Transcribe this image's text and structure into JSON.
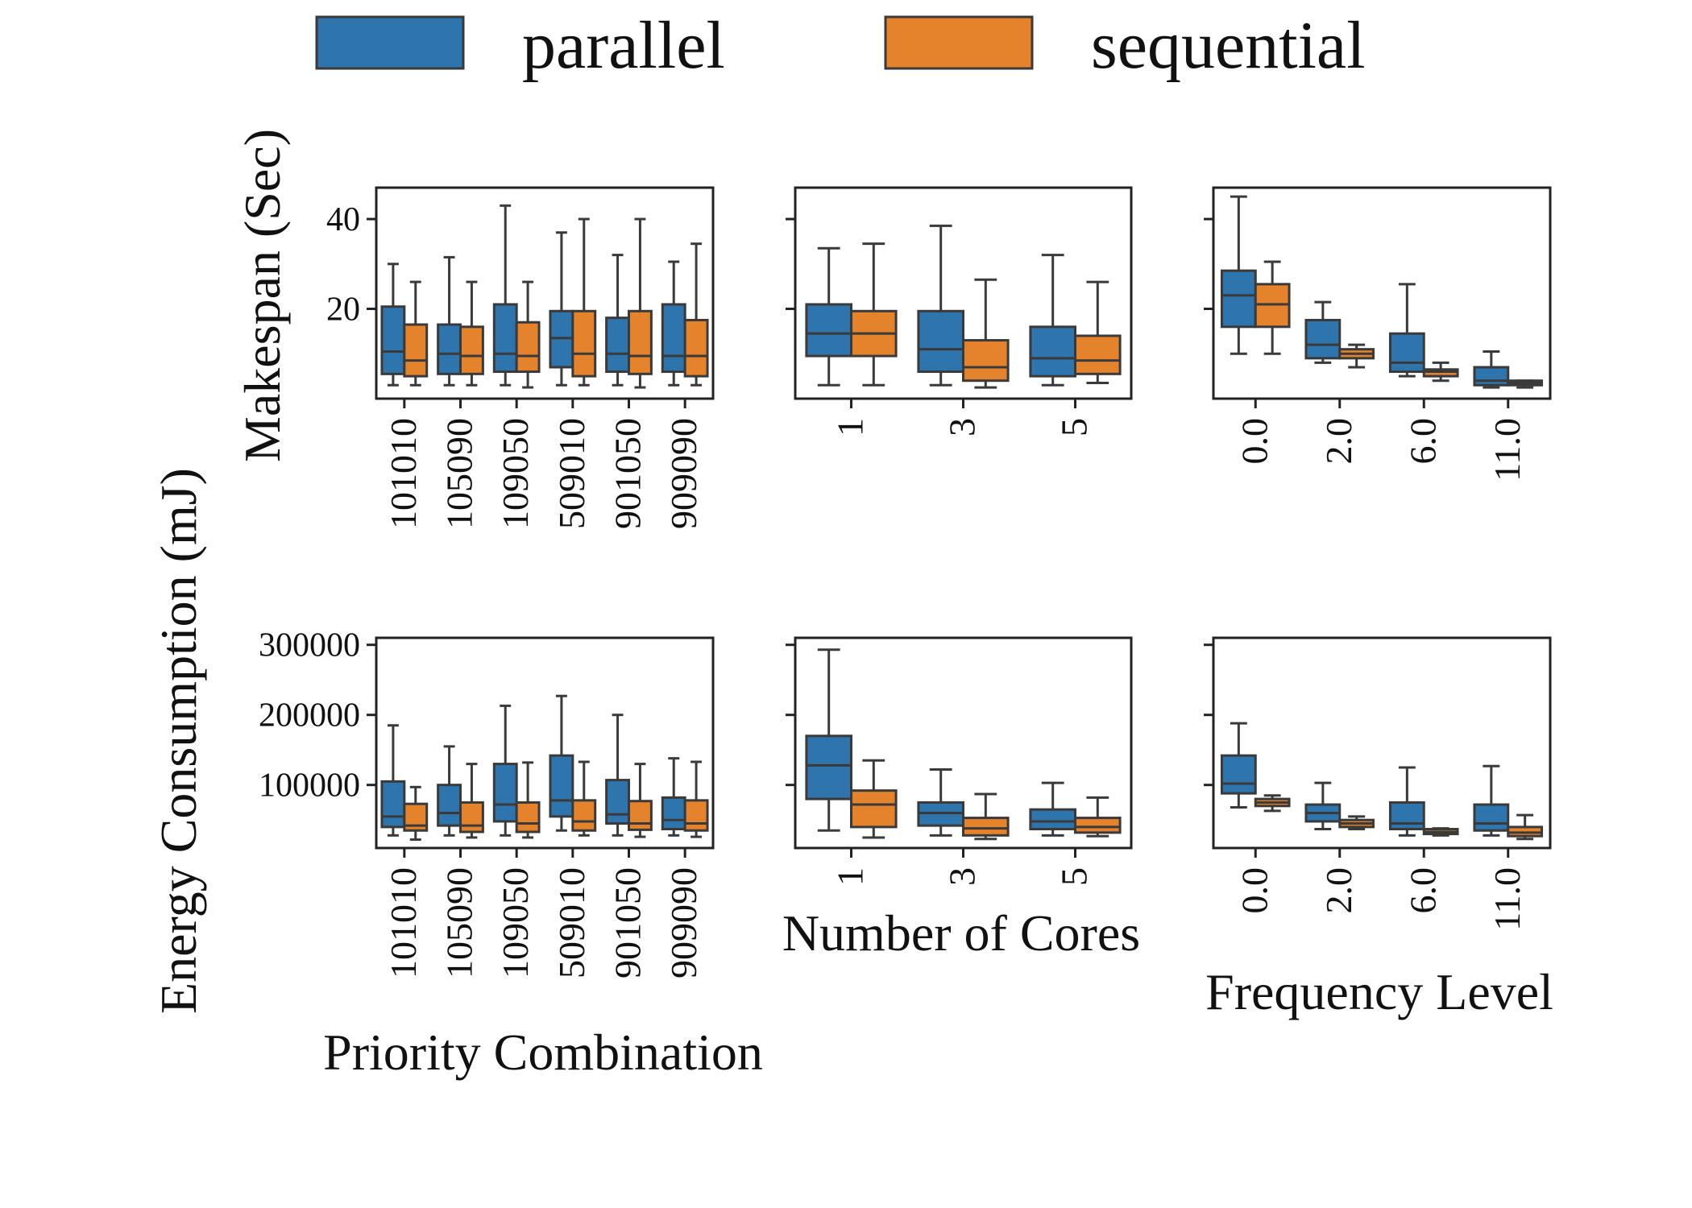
{
  "colors": {
    "parallel": "#2e75ad",
    "sequential": "#e5832d",
    "line": "#3a3a3a"
  },
  "legend": {
    "items": [
      {
        "key": "parallel",
        "label": "parallel"
      },
      {
        "key": "sequential",
        "label": "sequential"
      }
    ]
  },
  "labels": {
    "makespan_y": "Makespan (Sec)",
    "energy_y": "Energy Consumption (mJ)",
    "priority_x": "Priority Combination",
    "cores_x": "Number of Cores",
    "freq_x": "Frequency Level"
  },
  "chart_data": [
    {
      "type": "boxplot",
      "id": "makespan-priority",
      "ylabel": "Makespan (Sec)",
      "ylim": [
        0,
        47
      ],
      "yticks": [
        20,
        40
      ],
      "ytick_labels": [
        "20",
        "40"
      ],
      "categories": [
        "101010",
        "105090",
        "109050",
        "509010",
        "901050",
        "909090"
      ],
      "series": [
        {
          "name": "parallel",
          "boxes": [
            {
              "whislo": 3,
              "q1": 5.5,
              "med": 10.5,
              "q3": 20.5,
              "whishi": 30
            },
            {
              "whislo": 3,
              "q1": 5.5,
              "med": 10,
              "q3": 16.5,
              "whishi": 31.5
            },
            {
              "whislo": 3,
              "q1": 6,
              "med": 10,
              "q3": 21,
              "whishi": 43
            },
            {
              "whislo": 3,
              "q1": 7,
              "med": 13.5,
              "q3": 19.5,
              "whishi": 37
            },
            {
              "whislo": 3,
              "q1": 6,
              "med": 10,
              "q3": 18,
              "whishi": 32
            },
            {
              "whislo": 3,
              "q1": 6,
              "med": 9.5,
              "q3": 21,
              "whishi": 30.5
            }
          ]
        },
        {
          "name": "sequential",
          "boxes": [
            {
              "whislo": 3,
              "q1": 5,
              "med": 8.5,
              "q3": 16.5,
              "whishi": 26
            },
            {
              "whislo": 3,
              "q1": 5.5,
              "med": 9.5,
              "q3": 16,
              "whishi": 26
            },
            {
              "whislo": 2.5,
              "q1": 6,
              "med": 9.5,
              "q3": 17,
              "whishi": 26
            },
            {
              "whislo": 3,
              "q1": 5,
              "med": 10,
              "q3": 19.5,
              "whishi": 40
            },
            {
              "whislo": 2.5,
              "q1": 5.5,
              "med": 9.5,
              "q3": 19.5,
              "whishi": 40
            },
            {
              "whislo": 3,
              "q1": 5,
              "med": 9.5,
              "q3": 17.5,
              "whishi": 34.5
            }
          ]
        }
      ]
    },
    {
      "type": "boxplot",
      "id": "makespan-cores",
      "ylabel": "",
      "ylim": [
        0,
        47
      ],
      "yticks": [
        20,
        40
      ],
      "categories": [
        "1",
        "3",
        "5"
      ],
      "series": [
        {
          "name": "parallel",
          "boxes": [
            {
              "whislo": 3,
              "q1": 9.5,
              "med": 14.5,
              "q3": 21,
              "whishi": 33.5
            },
            {
              "whislo": 3,
              "q1": 6,
              "med": 11,
              "q3": 19.5,
              "whishi": 38.5
            },
            {
              "whislo": 3,
              "q1": 5,
              "med": 9,
              "q3": 16,
              "whishi": 32
            }
          ]
        },
        {
          "name": "sequential",
          "boxes": [
            {
              "whislo": 3,
              "q1": 9.5,
              "med": 14.5,
              "q3": 19.5,
              "whishi": 34.5
            },
            {
              "whislo": 2.5,
              "q1": 4,
              "med": 7,
              "q3": 13,
              "whishi": 26.5
            },
            {
              "whislo": 3.5,
              "q1": 5.5,
              "med": 8.5,
              "q3": 14,
              "whishi": 26
            }
          ]
        }
      ]
    },
    {
      "type": "boxplot",
      "id": "makespan-frequency",
      "ylabel": "",
      "ylim": [
        0,
        47
      ],
      "yticks": [
        20,
        40
      ],
      "categories": [
        "0.0",
        "2.0",
        "6.0",
        "11.0"
      ],
      "series": [
        {
          "name": "parallel",
          "boxes": [
            {
              "whislo": 10,
              "q1": 16,
              "med": 23,
              "q3": 28.5,
              "whishi": 45
            },
            {
              "whislo": 8,
              "q1": 9,
              "med": 12,
              "q3": 17.5,
              "whishi": 21.5
            },
            {
              "whislo": 5,
              "q1": 6,
              "med": 8,
              "q3": 14.5,
              "whishi": 25.5
            },
            {
              "whislo": 2.5,
              "q1": 3,
              "med": 4,
              "q3": 7,
              "whishi": 10.5
            }
          ]
        },
        {
          "name": "sequential",
          "boxes": [
            {
              "whislo": 10,
              "q1": 16,
              "med": 21,
              "q3": 25.5,
              "whishi": 30.5
            },
            {
              "whislo": 7,
              "q1": 9,
              "med": 10,
              "q3": 11,
              "whishi": 12
            },
            {
              "whislo": 4,
              "q1": 5,
              "med": 6,
              "q3": 6.5,
              "whishi": 8
            },
            {
              "whislo": 2.5,
              "q1": 3,
              "med": 3.5,
              "q3": 4,
              "whishi": 4
            }
          ]
        }
      ]
    },
    {
      "type": "boxplot",
      "id": "energy-priority",
      "ylabel": "Energy Consumption (mJ)",
      "ylim": [
        10000,
        310000
      ],
      "yticks": [
        100000,
        200000,
        300000
      ],
      "ytick_labels": [
        "100000",
        "200000",
        "300000"
      ],
      "categories": [
        "101010",
        "105090",
        "109050",
        "509010",
        "901050",
        "909090"
      ],
      "series": [
        {
          "name": "parallel",
          "boxes": [
            {
              "whislo": 28000,
              "q1": 40000,
              "med": 55000,
              "q3": 105000,
              "whishi": 185000
            },
            {
              "whislo": 28000,
              "q1": 42000,
              "med": 60000,
              "q3": 100000,
              "whishi": 155000
            },
            {
              "whislo": 28000,
              "q1": 48000,
              "med": 72000,
              "q3": 130000,
              "whishi": 213000
            },
            {
              "whislo": 35000,
              "q1": 55000,
              "med": 78000,
              "q3": 142000,
              "whishi": 227000
            },
            {
              "whislo": 28000,
              "q1": 45000,
              "med": 58000,
              "q3": 107000,
              "whishi": 200000
            },
            {
              "whislo": 28000,
              "q1": 37000,
              "med": 50000,
              "q3": 82000,
              "whishi": 138000
            }
          ]
        },
        {
          "name": "sequential",
          "boxes": [
            {
              "whislo": 22000,
              "q1": 35000,
              "med": 42000,
              "q3": 73000,
              "whishi": 97000
            },
            {
              "whislo": 25000,
              "q1": 33000,
              "med": 42000,
              "q3": 75000,
              "whishi": 130000
            },
            {
              "whislo": 25000,
              "q1": 33000,
              "med": 45000,
              "q3": 75000,
              "whishi": 132000
            },
            {
              "whislo": 28000,
              "q1": 35000,
              "med": 48000,
              "q3": 78000,
              "whishi": 133000
            },
            {
              "whislo": 26000,
              "q1": 36000,
              "med": 45000,
              "q3": 77000,
              "whishi": 130000
            },
            {
              "whislo": 26000,
              "q1": 35000,
              "med": 45000,
              "q3": 78000,
              "whishi": 133000
            }
          ]
        }
      ]
    },
    {
      "type": "boxplot",
      "id": "energy-cores",
      "ylabel": "",
      "xlabel": "Number of Cores",
      "ylim": [
        10000,
        310000
      ],
      "yticks": [
        100000,
        200000,
        300000
      ],
      "categories": [
        "1",
        "3",
        "5"
      ],
      "series": [
        {
          "name": "parallel",
          "boxes": [
            {
              "whislo": 35000,
              "q1": 80000,
              "med": 128000,
              "q3": 170000,
              "whishi": 293000
            },
            {
              "whislo": 28000,
              "q1": 42000,
              "med": 60000,
              "q3": 75000,
              "whishi": 122000
            },
            {
              "whislo": 28000,
              "q1": 37000,
              "med": 48000,
              "q3": 65000,
              "whishi": 103000
            }
          ]
        },
        {
          "name": "sequential",
          "boxes": [
            {
              "whislo": 25000,
              "q1": 40000,
              "med": 72000,
              "q3": 92000,
              "whishi": 135000
            },
            {
              "whislo": 23000,
              "q1": 28000,
              "med": 38000,
              "q3": 53000,
              "whishi": 87000
            },
            {
              "whislo": 27000,
              "q1": 32000,
              "med": 40000,
              "q3": 53000,
              "whishi": 82000
            }
          ]
        }
      ]
    },
    {
      "type": "boxplot",
      "id": "energy-frequency",
      "ylabel": "",
      "xlabel": "Frequency Level",
      "ylim": [
        10000,
        310000
      ],
      "yticks": [
        100000,
        200000,
        300000
      ],
      "categories": [
        "0.0",
        "2.0",
        "6.0",
        "11.0"
      ],
      "series": [
        {
          "name": "parallel",
          "boxes": [
            {
              "whislo": 68000,
              "q1": 88000,
              "med": 102000,
              "q3": 142000,
              "whishi": 188000
            },
            {
              "whislo": 37000,
              "q1": 48000,
              "med": 60000,
              "q3": 72000,
              "whishi": 103000
            },
            {
              "whislo": 28000,
              "q1": 37000,
              "med": 45000,
              "q3": 75000,
              "whishi": 125000
            },
            {
              "whislo": 28000,
              "q1": 35000,
              "med": 45000,
              "q3": 72000,
              "whishi": 127000
            }
          ]
        },
        {
          "name": "sequential",
          "boxes": [
            {
              "whislo": 63000,
              "q1": 70000,
              "med": 75000,
              "q3": 80000,
              "whishi": 85000
            },
            {
              "whislo": 37000,
              "q1": 40000,
              "med": 45000,
              "q3": 50000,
              "whishi": 55000
            },
            {
              "whislo": 28000,
              "q1": 30000,
              "med": 33000,
              "q3": 37000,
              "whishi": 38000
            },
            {
              "whislo": 23000,
              "q1": 27000,
              "med": 32000,
              "q3": 40000,
              "whishi": 57000
            }
          ]
        }
      ]
    }
  ]
}
